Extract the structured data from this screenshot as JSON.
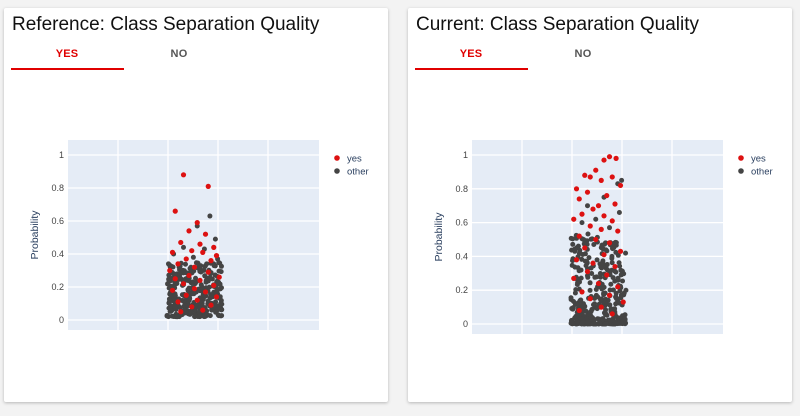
{
  "panels": [
    {
      "title": "Reference: Class Separation Quality",
      "tabs": [
        {
          "label": "YES",
          "active": true
        },
        {
          "label": "NO",
          "active": false
        }
      ]
    },
    {
      "title": "Current: Class Separation Quality",
      "tabs": [
        {
          "label": "YES",
          "active": true
        },
        {
          "label": "NO",
          "active": false
        }
      ]
    }
  ],
  "colors": {
    "yes": "#dd1111",
    "other": "#444444",
    "plot_bg": "#e5ecf6",
    "accent": "#e00000"
  },
  "chart_data": [
    {
      "type": "scatter",
      "title": "Reference: Class Separation Quality",
      "xlabel": "",
      "ylabel": "Probability",
      "ylim": [
        -0.05,
        1.05
      ],
      "yticks": [
        "0",
        "0.2",
        "0.4",
        "0.6",
        "0.8",
        "1"
      ],
      "x_jitter_range": [
        0.0,
        1.0
      ],
      "grid": true,
      "legend_position": "top-right",
      "series": [
        {
          "name": "yes",
          "points": [
            {
              "x": 0.3,
              "y": 0.88
            },
            {
              "x": 0.75,
              "y": 0.81
            },
            {
              "x": 0.15,
              "y": 0.66
            },
            {
              "x": 0.55,
              "y": 0.59
            },
            {
              "x": 0.4,
              "y": 0.54
            },
            {
              "x": 0.7,
              "y": 0.52
            },
            {
              "x": 0.25,
              "y": 0.47
            },
            {
              "x": 0.6,
              "y": 0.46
            },
            {
              "x": 0.85,
              "y": 0.44
            },
            {
              "x": 0.1,
              "y": 0.41
            },
            {
              "x": 0.45,
              "y": 0.42
            },
            {
              "x": 0.65,
              "y": 0.41
            },
            {
              "x": 0.9,
              "y": 0.39
            },
            {
              "x": 0.35,
              "y": 0.37
            },
            {
              "x": 0.8,
              "y": 0.36
            },
            {
              "x": 0.2,
              "y": 0.34
            },
            {
              "x": 0.5,
              "y": 0.32
            },
            {
              "x": 0.05,
              "y": 0.3
            },
            {
              "x": 0.75,
              "y": 0.29
            },
            {
              "x": 0.4,
              "y": 0.27
            },
            {
              "x": 0.95,
              "y": 0.26
            },
            {
              "x": 0.15,
              "y": 0.25
            },
            {
              "x": 0.6,
              "y": 0.24
            },
            {
              "x": 0.3,
              "y": 0.22
            },
            {
              "x": 0.85,
              "y": 0.21
            },
            {
              "x": 0.5,
              "y": 0.19
            },
            {
              "x": 0.1,
              "y": 0.18
            },
            {
              "x": 0.7,
              "y": 0.17
            },
            {
              "x": 0.35,
              "y": 0.15
            },
            {
              "x": 0.9,
              "y": 0.14
            },
            {
              "x": 0.55,
              "y": 0.12
            },
            {
              "x": 0.2,
              "y": 0.11
            },
            {
              "x": 0.8,
              "y": 0.09
            },
            {
              "x": 0.45,
              "y": 0.08
            },
            {
              "x": 0.65,
              "y": 0.06
            },
            {
              "x": 0.25,
              "y": 0.05
            }
          ]
        },
        {
          "name": "other",
          "summary": "dense cluster of ~300 points between 0.02 and 0.35, sparse up to 0.63",
          "points": [
            {
              "x": 0.78,
              "y": 0.63
            },
            {
              "x": 0.55,
              "y": 0.57
            },
            {
              "x": 0.88,
              "y": 0.49
            },
            {
              "x": 0.3,
              "y": 0.44
            },
            {
              "x": 0.68,
              "y": 0.43
            },
            {
              "x": 0.12,
              "y": 0.4
            },
            {
              "x": 0.48,
              "y": 0.38
            },
            {
              "x": 0.92,
              "y": 0.37
            }
          ]
        }
      ]
    },
    {
      "type": "scatter",
      "title": "Current: Class Separation Quality",
      "xlabel": "",
      "ylabel": "Probability",
      "ylim": [
        -0.05,
        1.05
      ],
      "yticks": [
        "0",
        "0.2",
        "0.4",
        "0.6",
        "0.8",
        "1"
      ],
      "x_jitter_range": [
        0.0,
        1.0
      ],
      "grid": true,
      "legend_position": "top-right",
      "series": [
        {
          "name": "yes",
          "points": [
            {
              "x": 0.7,
              "y": 0.99
            },
            {
              "x": 0.82,
              "y": 0.98
            },
            {
              "x": 0.6,
              "y": 0.97
            },
            {
              "x": 0.45,
              "y": 0.91
            },
            {
              "x": 0.25,
              "y": 0.88
            },
            {
              "x": 0.35,
              "y": 0.87
            },
            {
              "x": 0.75,
              "y": 0.87
            },
            {
              "x": 0.55,
              "y": 0.85
            },
            {
              "x": 0.1,
              "y": 0.8
            },
            {
              "x": 0.9,
              "y": 0.82
            },
            {
              "x": 0.3,
              "y": 0.78
            },
            {
              "x": 0.65,
              "y": 0.76
            },
            {
              "x": 0.15,
              "y": 0.74
            },
            {
              "x": 0.5,
              "y": 0.7
            },
            {
              "x": 0.8,
              "y": 0.71
            },
            {
              "x": 0.4,
              "y": 0.68
            },
            {
              "x": 0.2,
              "y": 0.65
            },
            {
              "x": 0.6,
              "y": 0.64
            },
            {
              "x": 0.05,
              "y": 0.62
            },
            {
              "x": 0.75,
              "y": 0.61
            },
            {
              "x": 0.35,
              "y": 0.58
            },
            {
              "x": 0.55,
              "y": 0.56
            },
            {
              "x": 0.85,
              "y": 0.55
            },
            {
              "x": 0.15,
              "y": 0.52
            },
            {
              "x": 0.45,
              "y": 0.5
            },
            {
              "x": 0.7,
              "y": 0.48
            },
            {
              "x": 0.25,
              "y": 0.45
            },
            {
              "x": 0.9,
              "y": 0.43
            },
            {
              "x": 0.6,
              "y": 0.41
            },
            {
              "x": 0.1,
              "y": 0.38
            },
            {
              "x": 0.4,
              "y": 0.36
            },
            {
              "x": 0.8,
              "y": 0.34
            },
            {
              "x": 0.3,
              "y": 0.31
            },
            {
              "x": 0.65,
              "y": 0.29
            },
            {
              "x": 0.05,
              "y": 0.27
            },
            {
              "x": 0.5,
              "y": 0.24
            },
            {
              "x": 0.85,
              "y": 0.22
            },
            {
              "x": 0.2,
              "y": 0.19
            },
            {
              "x": 0.7,
              "y": 0.17
            },
            {
              "x": 0.35,
              "y": 0.15
            },
            {
              "x": 0.95,
              "y": 0.13
            },
            {
              "x": 0.55,
              "y": 0.1
            },
            {
              "x": 0.15,
              "y": 0.08
            },
            {
              "x": 0.75,
              "y": 0.06
            }
          ]
        },
        {
          "name": "other",
          "summary": "~350 points mostly 0.0-0.3, continuing up to ~0.85",
          "points": [
            {
              "x": 0.92,
              "y": 0.85
            },
            {
              "x": 0.85,
              "y": 0.83
            },
            {
              "x": 0.6,
              "y": 0.75
            },
            {
              "x": 0.3,
              "y": 0.7
            },
            {
              "x": 0.88,
              "y": 0.66
            },
            {
              "x": 0.45,
              "y": 0.62
            },
            {
              "x": 0.2,
              "y": 0.6
            },
            {
              "x": 0.7,
              "y": 0.57
            }
          ]
        }
      ]
    }
  ]
}
